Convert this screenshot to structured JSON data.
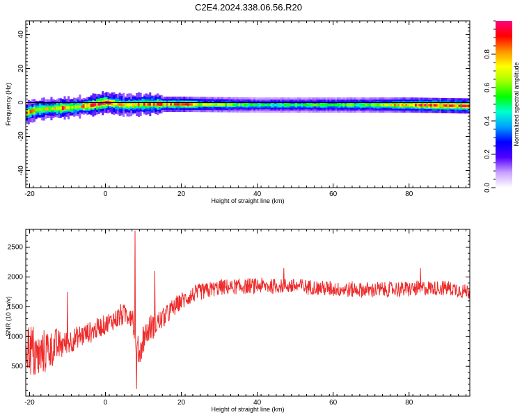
{
  "title": "C2E4.2024.338.06.56.R20",
  "colors": {
    "snr_line": "#ee2b2b",
    "zero_line": "#000000",
    "axes": "#000000"
  },
  "chart_data": [
    {
      "type": "heatmap",
      "xlabel": "Height of straight line (km)",
      "ylabel": "Frequency (Hz)",
      "xlim": [
        -21,
        96
      ],
      "ylim": [
        -50,
        48
      ],
      "xticks": [
        "-20",
        "0",
        "20",
        "40",
        "60",
        "80"
      ],
      "yticks": [
        "40",
        "20",
        "0",
        "-20",
        "-40"
      ],
      "colorbar": {
        "label": "Normalized spectral amplitude",
        "range": [
          0,
          1
        ],
        "ticks": [
          "0.0",
          "0.2",
          "0.4",
          "0.6",
          "0.8"
        ],
        "colormap": [
          "#ffffff",
          "#c9a0ff",
          "#5000ff",
          "#0000ff",
          "#00a0ff",
          "#00ffd0",
          "#00ff00",
          "#a0ff00",
          "#ffff00",
          "#ff9000",
          "#ff0000",
          "#ff0080"
        ]
      },
      "band": {
        "center_frequency": [
          [
            -21,
            -6
          ],
          [
            -18,
            -4
          ],
          [
            -10,
            -3
          ],
          [
            -5,
            -2
          ],
          [
            0,
            0
          ],
          [
            5,
            -1.5
          ],
          [
            10,
            -1
          ],
          [
            20,
            -1
          ],
          [
            40,
            -1.5
          ],
          [
            60,
            -1.5
          ],
          [
            80,
            -1.5
          ],
          [
            95,
            -2
          ]
        ],
        "amplitude_profile": [
          [
            -21,
            0.8
          ],
          [
            -15,
            0.7
          ],
          [
            -12,
            0.85
          ],
          [
            -8,
            0.7
          ],
          [
            -4,
            0.9
          ],
          [
            0,
            0.95
          ],
          [
            4,
            0.8
          ],
          [
            8,
            0.75
          ],
          [
            12,
            0.85
          ],
          [
            16,
            0.8
          ],
          [
            20,
            0.9
          ],
          [
            25,
            0.7
          ],
          [
            40,
            0.5
          ],
          [
            60,
            0.55
          ],
          [
            70,
            0.6
          ],
          [
            78,
            0.8
          ],
          [
            85,
            0.9
          ],
          [
            95,
            0.95
          ]
        ]
      }
    },
    {
      "type": "line",
      "xlabel": "Height of straight line (km)",
      "ylabel": "SNR (10 * v/v)",
      "xlim": [
        -21,
        96
      ],
      "ylim": [
        0,
        2800
      ],
      "xticks": [
        "-20",
        "0",
        "20",
        "40",
        "60",
        "80"
      ],
      "yticks": [
        "500",
        "1000",
        "1500",
        "2000",
        "2500"
      ],
      "series": [
        {
          "trend": [
            [
              -21,
              900
            ],
            [
              -18,
              650
            ],
            [
              -15,
              800
            ],
            [
              -10,
              900
            ],
            [
              -5,
              1050
            ],
            [
              0,
              1200
            ],
            [
              4,
              1350
            ],
            [
              7,
              1400
            ],
            [
              8,
              900
            ],
            [
              9,
              700
            ],
            [
              10,
              1000
            ],
            [
              12,
              1150
            ],
            [
              15,
              1300
            ],
            [
              20,
              1600
            ],
            [
              25,
              1750
            ],
            [
              30,
              1820
            ],
            [
              40,
              1850
            ],
            [
              50,
              1850
            ],
            [
              60,
              1800
            ],
            [
              70,
              1780
            ],
            [
              80,
              1800
            ],
            [
              90,
              1820
            ],
            [
              95,
              1760
            ]
          ],
          "noise_amplitude": [
            [
              -21,
              600
            ],
            [
              -15,
              450
            ],
            [
              -10,
              250
            ],
            [
              0,
              200
            ],
            [
              10,
              300
            ],
            [
              20,
              180
            ],
            [
              40,
              160
            ],
            [
              60,
              160
            ],
            [
              95,
              160
            ]
          ],
          "spikes": [
            [
              -10,
              1750
            ],
            [
              7.8,
              2780
            ],
            [
              8.2,
              120
            ],
            [
              13,
              2100
            ],
            [
              47,
              2150
            ],
            [
              83,
              2150
            ]
          ]
        }
      ]
    }
  ]
}
